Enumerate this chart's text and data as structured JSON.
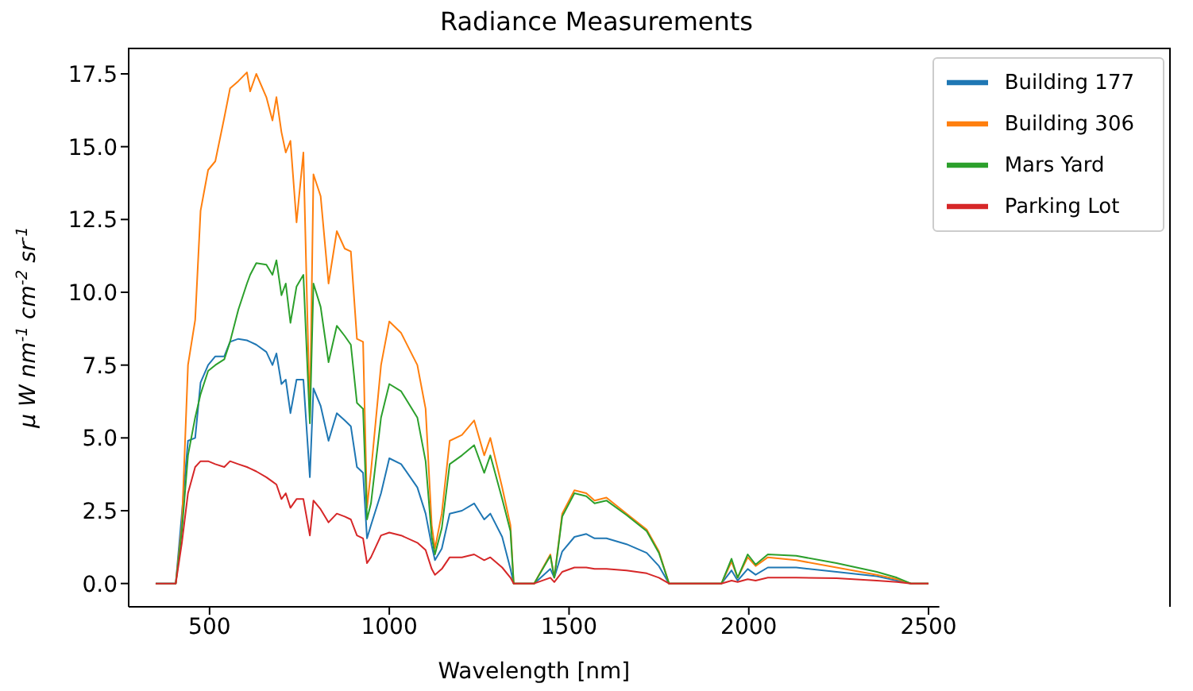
{
  "chart_data": {
    "type": "line",
    "title": "Radiance Measurements",
    "xlabel": "Wavelength [nm]",
    "ylabel": "μ W nm$^{-1}$ cm$^{-2}$ sr$^{-1}$",
    "x": [
      350,
      380,
      406,
      423,
      440,
      460,
      475,
      496,
      516,
      541,
      557,
      580,
      604,
      613,
      630,
      658,
      675,
      686,
      700,
      712,
      725,
      742,
      761,
      779,
      789,
      809,
      831,
      854,
      876,
      893,
      910,
      927,
      938,
      949,
      977,
      1000,
      1033,
      1078,
      1101,
      1118,
      1127,
      1146,
      1168,
      1202,
      1236,
      1264,
      1281,
      1314,
      1337,
      1346,
      1403,
      1448,
      1459,
      1481,
      1515,
      1548,
      1571,
      1604,
      1660,
      1716,
      1750,
      1778,
      1924,
      1952,
      1969,
      1997,
      2019,
      2053,
      2132,
      2244,
      2356,
      2412,
      2451,
      2500
    ],
    "series": [
      {
        "name": "Building 177",
        "color": "#1f77b4",
        "values": [
          0,
          0,
          0,
          2.4,
          4.9,
          5.0,
          6.9,
          7.5,
          7.8,
          7.8,
          8.3,
          8.4,
          8.35,
          8.3,
          8.2,
          7.95,
          7.5,
          7.9,
          6.85,
          7.0,
          5.85,
          7.0,
          7.0,
          3.65,
          6.7,
          6.1,
          4.9,
          5.85,
          5.6,
          5.4,
          4.0,
          3.8,
          1.55,
          2.0,
          3.1,
          4.3,
          4.1,
          3.3,
          2.4,
          1.3,
          0.8,
          1.2,
          2.4,
          2.5,
          2.75,
          2.2,
          2.4,
          1.6,
          0.5,
          0,
          0,
          0.5,
          0.2,
          1.1,
          1.6,
          1.7,
          1.55,
          1.55,
          1.35,
          1.05,
          0.6,
          0,
          0,
          0.45,
          0.1,
          0.5,
          0.3,
          0.55,
          0.55,
          0.4,
          0.25,
          0.1,
          0,
          0
        ]
      },
      {
        "name": "Building 306",
        "color": "#ff7f0e",
        "values": [
          null,
          null,
          0,
          2.0,
          7.5,
          9.05,
          12.8,
          14.2,
          14.5,
          16.0,
          17.0,
          17.25,
          17.55,
          16.9,
          17.5,
          16.7,
          15.9,
          16.7,
          15.5,
          14.8,
          15.2,
          12.4,
          14.8,
          5.7,
          14.05,
          13.3,
          10.3,
          12.1,
          11.5,
          11.4,
          8.4,
          8.3,
          2.6,
          3.85,
          7.5,
          9.0,
          8.6,
          7.5,
          6.0,
          2.0,
          1.2,
          2.4,
          4.9,
          5.1,
          5.6,
          4.4,
          5.0,
          3.3,
          2.0,
          0,
          0,
          1.0,
          0.2,
          2.4,
          3.2,
          3.1,
          2.85,
          2.95,
          2.4,
          1.85,
          1.1,
          0,
          0,
          0.75,
          0.2,
          0.9,
          0.6,
          0.9,
          0.8,
          0.55,
          0.3,
          0.15,
          0,
          0
        ]
      },
      {
        "name": "Mars Yard",
        "color": "#2ca02c",
        "values": [
          0,
          0,
          0,
          1.8,
          4.4,
          5.7,
          6.5,
          7.3,
          7.5,
          7.7,
          8.3,
          9.4,
          10.3,
          10.6,
          11.0,
          10.95,
          10.6,
          11.1,
          9.9,
          10.3,
          8.95,
          10.2,
          10.6,
          5.5,
          10.3,
          9.5,
          7.6,
          8.85,
          8.5,
          8.2,
          6.2,
          6.0,
          2.2,
          2.75,
          5.7,
          6.85,
          6.6,
          5.7,
          4.2,
          1.6,
          1.0,
          1.9,
          4.1,
          4.4,
          4.75,
          3.8,
          4.4,
          2.9,
          1.8,
          0,
          0,
          0.95,
          0.2,
          2.3,
          3.1,
          3.0,
          2.75,
          2.85,
          2.35,
          1.8,
          1.05,
          0,
          0,
          0.85,
          0.2,
          1.0,
          0.65,
          1.0,
          0.95,
          0.7,
          0.4,
          0.2,
          0,
          0
        ]
      },
      {
        "name": "Parking Lot",
        "color": "#d62728",
        "values": [
          0,
          0,
          0,
          1.4,
          3.1,
          4.0,
          4.2,
          4.2,
          4.1,
          4.0,
          4.2,
          4.1,
          4.0,
          3.95,
          3.85,
          3.65,
          3.5,
          3.4,
          2.9,
          3.1,
          2.6,
          2.9,
          2.9,
          1.65,
          2.85,
          2.55,
          2.1,
          2.4,
          2.3,
          2.2,
          1.65,
          1.55,
          0.7,
          0.9,
          1.65,
          1.75,
          1.65,
          1.4,
          1.15,
          0.5,
          0.3,
          0.5,
          0.9,
          0.9,
          1.0,
          0.8,
          0.9,
          0.55,
          0.2,
          0,
          0,
          0.2,
          0.05,
          0.4,
          0.55,
          0.55,
          0.5,
          0.5,
          0.45,
          0.35,
          0.2,
          0,
          0,
          0.1,
          0.05,
          0.15,
          0.1,
          0.2,
          0.2,
          0.18,
          0.1,
          0.05,
          0,
          0
        ]
      }
    ],
    "xlim": [
      275,
      2530
    ],
    "xticks": [
      500,
      1000,
      1500,
      2000,
      2500
    ],
    "ylim": [
      -0.8,
      18.4
    ],
    "yticks": [
      {
        "value": 0,
        "label": "0.0"
      },
      2.5,
      {
        "value": 5,
        "label": "5.0"
      },
      7.5,
      {
        "value": 10,
        "label": "10.0"
      },
      12.5,
      {
        "value": 15,
        "label": "15.0"
      },
      17.5
    ],
    "grid": false,
    "legend": "top right"
  }
}
